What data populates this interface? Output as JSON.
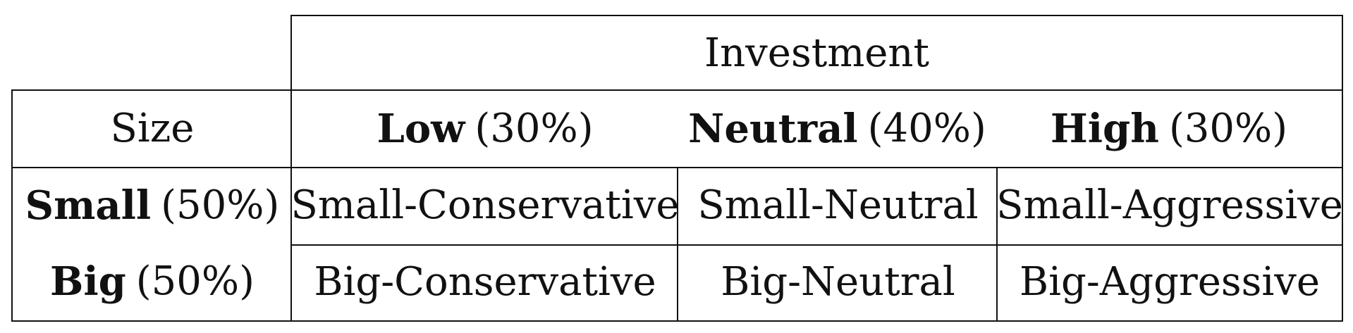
{
  "table": {
    "investment_header": "Investment",
    "size_header": "Size",
    "columns": [
      {
        "label": "Low",
        "pct": "(30%)"
      },
      {
        "label": "Neutral",
        "pct": "(40%)"
      },
      {
        "label": "High",
        "pct": "(30%)"
      }
    ],
    "rows": [
      {
        "label": "Small",
        "pct": "(50%)",
        "cells": [
          "Small-Conservative",
          "Small-Neutral",
          "Small-Aggressive"
        ]
      },
      {
        "label": "Big",
        "pct": "(50%)",
        "cells": [
          "Big-Conservative",
          "Big-Neutral",
          "Big-Aggressive"
        ]
      }
    ]
  }
}
